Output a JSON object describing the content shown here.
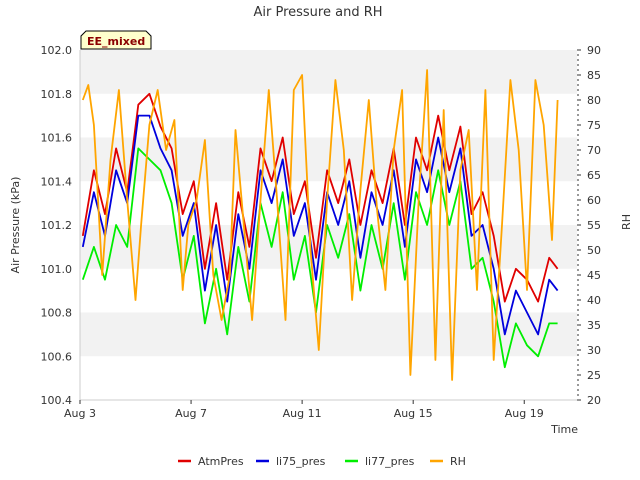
{
  "chart_data": {
    "type": "line",
    "title": "Air Pressure and RH",
    "xlabel": "Time",
    "ylabel": "Air Pressure (kPa)",
    "y2label": "RH",
    "badge": "EE_mixed",
    "x_ticks": [
      "Aug 3",
      "Aug 7",
      "Aug 11",
      "Aug 15",
      "Aug 19"
    ],
    "y_ticks": [
      "100.4",
      "100.6",
      "100.8",
      "101.0",
      "101.2",
      "101.4",
      "101.6",
      "101.8",
      "102.0"
    ],
    "y2_ticks": [
      "20",
      "25",
      "30",
      "35",
      "40",
      "45",
      "50",
      "55",
      "60",
      "65",
      "70",
      "75",
      "80",
      "85",
      "90"
    ],
    "ylim": [
      100.4,
      102.0
    ],
    "y2lim": [
      20,
      90
    ],
    "xlim": [
      3.0,
      20.9
    ],
    "x_unit": "day of August",
    "background_bands": true,
    "legend_position": "bottom",
    "series": [
      {
        "name": "AtmPres",
        "color": "#e00000",
        "axis": "left",
        "x": [
          3.1,
          3.5,
          3.9,
          4.3,
          4.7,
          5.1,
          5.5,
          5.9,
          6.3,
          6.7,
          7.1,
          7.5,
          7.9,
          8.3,
          8.7,
          9.1,
          9.5,
          9.9,
          10.3,
          10.7,
          11.1,
          11.5,
          11.9,
          12.3,
          12.7,
          13.1,
          13.5,
          13.9,
          14.3,
          14.7,
          15.1,
          15.5,
          15.9,
          16.3,
          16.7,
          17.1,
          17.5,
          17.9,
          18.3,
          18.7,
          19.1,
          19.5,
          19.9,
          20.2
        ],
        "values": [
          101.15,
          101.45,
          101.25,
          101.55,
          101.35,
          101.75,
          101.8,
          101.65,
          101.55,
          101.25,
          101.4,
          101.0,
          101.3,
          100.95,
          101.35,
          101.1,
          101.55,
          101.4,
          101.6,
          101.25,
          101.4,
          101.05,
          101.45,
          101.3,
          101.5,
          101.2,
          101.45,
          101.3,
          101.55,
          101.2,
          101.6,
          101.45,
          101.7,
          101.45,
          101.65,
          101.25,
          101.35,
          101.15,
          100.85,
          101.0,
          100.95,
          100.85,
          101.05,
          101.0
        ]
      },
      {
        "name": "li75_pres",
        "color": "#0000dd",
        "axis": "left",
        "x": [
          3.1,
          3.5,
          3.9,
          4.3,
          4.7,
          5.1,
          5.5,
          5.9,
          6.3,
          6.7,
          7.1,
          7.5,
          7.9,
          8.3,
          8.7,
          9.1,
          9.5,
          9.9,
          10.3,
          10.7,
          11.1,
          11.5,
          11.9,
          12.3,
          12.7,
          13.1,
          13.5,
          13.9,
          14.3,
          14.7,
          15.1,
          15.5,
          15.9,
          16.3,
          16.7,
          17.1,
          17.5,
          17.9,
          18.3,
          18.7,
          19.1,
          19.5,
          19.9,
          20.2
        ],
        "values": [
          101.1,
          101.35,
          101.15,
          101.45,
          101.3,
          101.7,
          101.7,
          101.55,
          101.45,
          101.15,
          101.3,
          100.9,
          101.2,
          100.85,
          101.25,
          101.0,
          101.45,
          101.3,
          101.5,
          101.15,
          101.3,
          100.95,
          101.35,
          101.2,
          101.4,
          101.05,
          101.35,
          101.2,
          101.45,
          101.1,
          101.5,
          101.35,
          101.6,
          101.35,
          101.55,
          101.15,
          101.2,
          101.0,
          100.7,
          100.9,
          100.8,
          100.7,
          100.95,
          100.9
        ]
      },
      {
        "name": "li77_pres",
        "color": "#00ee00",
        "axis": "left",
        "x": [
          3.1,
          3.5,
          3.9,
          4.3,
          4.7,
          5.1,
          5.5,
          5.9,
          6.3,
          6.7,
          7.1,
          7.5,
          7.9,
          8.3,
          8.7,
          9.1,
          9.5,
          9.9,
          10.3,
          10.7,
          11.1,
          11.5,
          11.9,
          12.3,
          12.7,
          13.1,
          13.5,
          13.9,
          14.3,
          14.7,
          15.1,
          15.5,
          15.9,
          16.3,
          16.7,
          17.1,
          17.5,
          17.9,
          18.3,
          18.7,
          19.1,
          19.5,
          19.9,
          20.2
        ],
        "values": [
          100.95,
          101.1,
          100.95,
          101.2,
          101.1,
          101.55,
          101.5,
          101.45,
          101.3,
          100.95,
          101.15,
          100.75,
          101.0,
          100.7,
          101.1,
          100.85,
          101.3,
          101.1,
          101.35,
          100.95,
          101.15,
          100.8,
          101.2,
          101.05,
          101.25,
          100.9,
          101.2,
          101.0,
          101.3,
          100.95,
          101.35,
          101.2,
          101.45,
          101.2,
          101.4,
          101.0,
          101.05,
          100.85,
          100.55,
          100.75,
          100.65,
          100.6,
          100.75,
          100.75
        ]
      },
      {
        "name": "RH",
        "color": "#ffa500",
        "axis": "right",
        "x": [
          3.1,
          3.3,
          3.5,
          3.8,
          4.1,
          4.4,
          4.7,
          5.0,
          5.2,
          5.5,
          5.8,
          6.1,
          6.4,
          6.7,
          6.9,
          7.2,
          7.5,
          7.8,
          8.1,
          8.4,
          8.6,
          8.9,
          9.2,
          9.5,
          9.8,
          10.1,
          10.4,
          10.7,
          11.0,
          11.3,
          11.6,
          11.9,
          12.2,
          12.5,
          12.8,
          13.1,
          13.4,
          13.7,
          14.0,
          14.3,
          14.6,
          14.9,
          15.2,
          15.5,
          15.8,
          16.1,
          16.4,
          16.7,
          17.0,
          17.3,
          17.6,
          17.9,
          18.2,
          18.5,
          18.8,
          19.1,
          19.4,
          19.7,
          20.0,
          20.2
        ],
        "values": [
          80,
          83,
          75,
          45,
          68,
          82,
          60,
          40,
          55,
          75,
          82,
          70,
          76,
          42,
          55,
          60,
          72,
          45,
          36,
          45,
          74,
          55,
          36,
          60,
          82,
          60,
          36,
          82,
          85,
          50,
          30,
          60,
          84,
          70,
          40,
          62,
          80,
          58,
          42,
          70,
          82,
          25,
          60,
          86,
          28,
          78,
          24,
          66,
          74,
          42,
          82,
          28,
          55,
          84,
          70,
          42,
          84,
          75,
          52,
          80
        ]
      }
    ]
  }
}
